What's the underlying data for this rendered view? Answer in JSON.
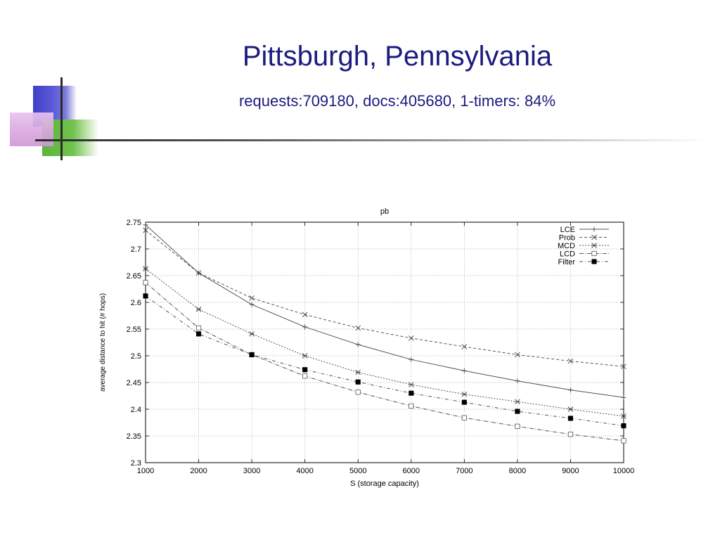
{
  "slide": {
    "title": "Pittsburgh, Pennsylvania",
    "subtitle": "requests:709180, docs:405680, 1-timers: 84%"
  },
  "chart_data": {
    "type": "line",
    "title": "pb",
    "xlabel": "S (storage capacity)",
    "ylabel": "average distance to hit (# hops)",
    "xlim": [
      1000,
      10000
    ],
    "ylim": [
      2.3,
      2.75
    ],
    "xticks": [
      1000,
      2000,
      3000,
      4000,
      5000,
      6000,
      7000,
      8000,
      9000,
      10000
    ],
    "yticks": [
      2.3,
      2.35,
      2.4,
      2.45,
      2.5,
      2.55,
      2.6,
      2.65,
      2.7,
      2.75
    ],
    "grid": true,
    "legend_position": "top-right",
    "x": [
      1000,
      2000,
      3000,
      4000,
      5000,
      6000,
      7000,
      8000,
      9000,
      10000
    ],
    "series": [
      {
        "name": "LCE",
        "marker": "plus",
        "dash": "solid",
        "values": [
          2.745,
          2.655,
          2.596,
          2.554,
          2.521,
          2.493,
          2.472,
          2.453,
          2.436,
          2.422
        ]
      },
      {
        "name": "Prob",
        "marker": "x",
        "dash": "dashed",
        "values": [
          2.735,
          2.655,
          2.608,
          2.577,
          2.552,
          2.533,
          2.517,
          2.502,
          2.49,
          2.48
        ]
      },
      {
        "name": "MCD",
        "marker": "star",
        "dash": "dotted",
        "values": [
          2.663,
          2.587,
          2.541,
          2.5,
          2.469,
          2.446,
          2.428,
          2.414,
          2.4,
          2.387
        ]
      },
      {
        "name": "LCD",
        "marker": "open-square",
        "dash": "dotdash",
        "values": [
          2.637,
          2.552,
          2.502,
          2.462,
          2.432,
          2.406,
          2.384,
          2.368,
          2.353,
          2.341
        ]
      },
      {
        "name": "Filter",
        "marker": "filled-square",
        "dash": "dashdot",
        "values": [
          2.612,
          2.541,
          2.502,
          2.474,
          2.451,
          2.43,
          2.413,
          2.396,
          2.383,
          2.369
        ]
      }
    ]
  }
}
